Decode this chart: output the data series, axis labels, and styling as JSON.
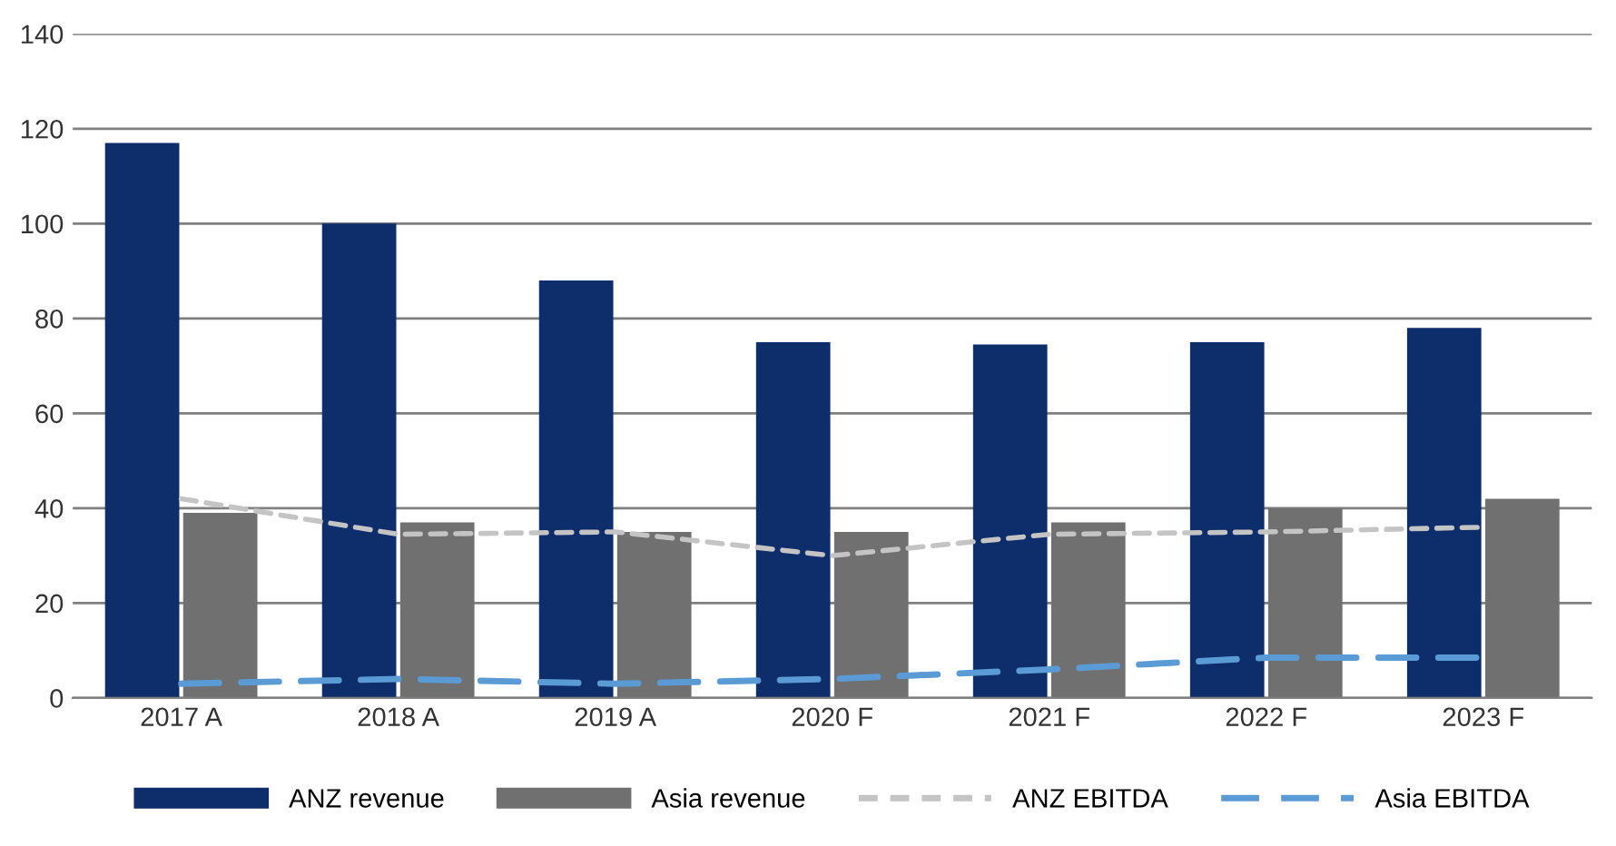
{
  "chart_data": {
    "type": "bar",
    "categories": [
      "2017 A",
      "2018 A",
      "2019 A",
      "2020 F",
      "2021 F",
      "2022 F",
      "2023 F"
    ],
    "series": [
      {
        "name": "ANZ revenue",
        "color": "#0e2d6b",
        "values": [
          117,
          100,
          88,
          75,
          74.5,
          75,
          78
        ]
      },
      {
        "name": "Asia revenue",
        "color": "#707070",
        "values": [
          39,
          37,
          35,
          35,
          37,
          40,
          42
        ]
      },
      {
        "name": "ANZ EBITDA",
        "type": "line",
        "color": "#c4c4c4",
        "line_style": "dotted",
        "values": [
          42,
          34.5,
          35,
          30,
          34.5,
          35,
          36
        ]
      },
      {
        "name": "Asia EBITDA",
        "type": "line",
        "color": "#5b9bd5",
        "line_style": "dashed",
        "values": [
          3,
          4,
          3,
          4,
          6,
          8.5,
          8.5
        ]
      }
    ],
    "ylim": [
      0,
      140
    ],
    "yticks": [
      0,
      20,
      40,
      60,
      80,
      100,
      120,
      140
    ],
    "grid": "y",
    "legend": "bottom"
  }
}
